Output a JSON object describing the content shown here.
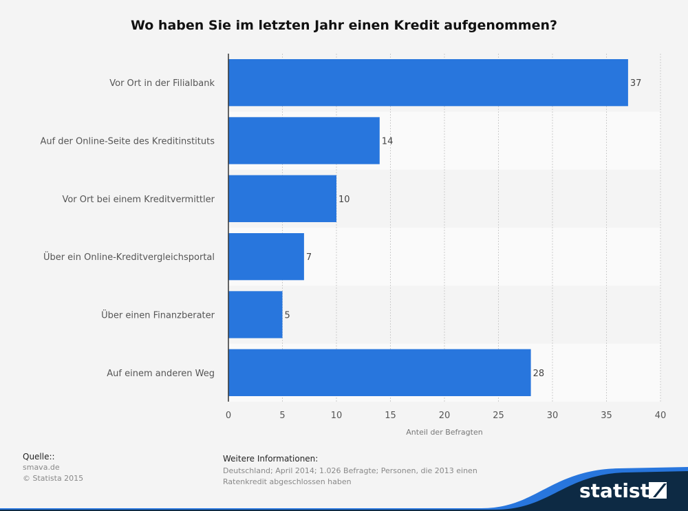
{
  "chart_data": {
    "type": "bar",
    "orientation": "horizontal",
    "title": "Wo haben Sie im letzten Jahr einen Kredit aufgenommen?",
    "xlabel": "Anteil der Befragten",
    "ylabel": "",
    "categories": [
      "Vor Ort in der Filialbank",
      "Auf der Online-Seite des Kreditinstituts",
      "Vor Ort bei einem Kreditvermittler",
      "Über ein Online-Kreditvergleichsportal",
      "Über einen Finanzberater",
      "Auf einem anderen Weg"
    ],
    "values": [
      37,
      14,
      10,
      7,
      5,
      28
    ],
    "xlim": [
      0,
      40
    ],
    "xticks": [
      0,
      5,
      10,
      15,
      20,
      25,
      30,
      35,
      40
    ],
    "grid": true,
    "bar_color": "#2876dd"
  },
  "footer": {
    "source_heading": "Quelle::",
    "source": "smava.de",
    "copyright": "© Statista 2015",
    "info_heading": "Weitere Informationen:",
    "info_line1": "Deutschland; April 2014; 1.026 Befragte; Personen, die 2013 einen",
    "info_line2": "Ratenkredit abgeschlossen haben",
    "logo_text": "statista"
  }
}
